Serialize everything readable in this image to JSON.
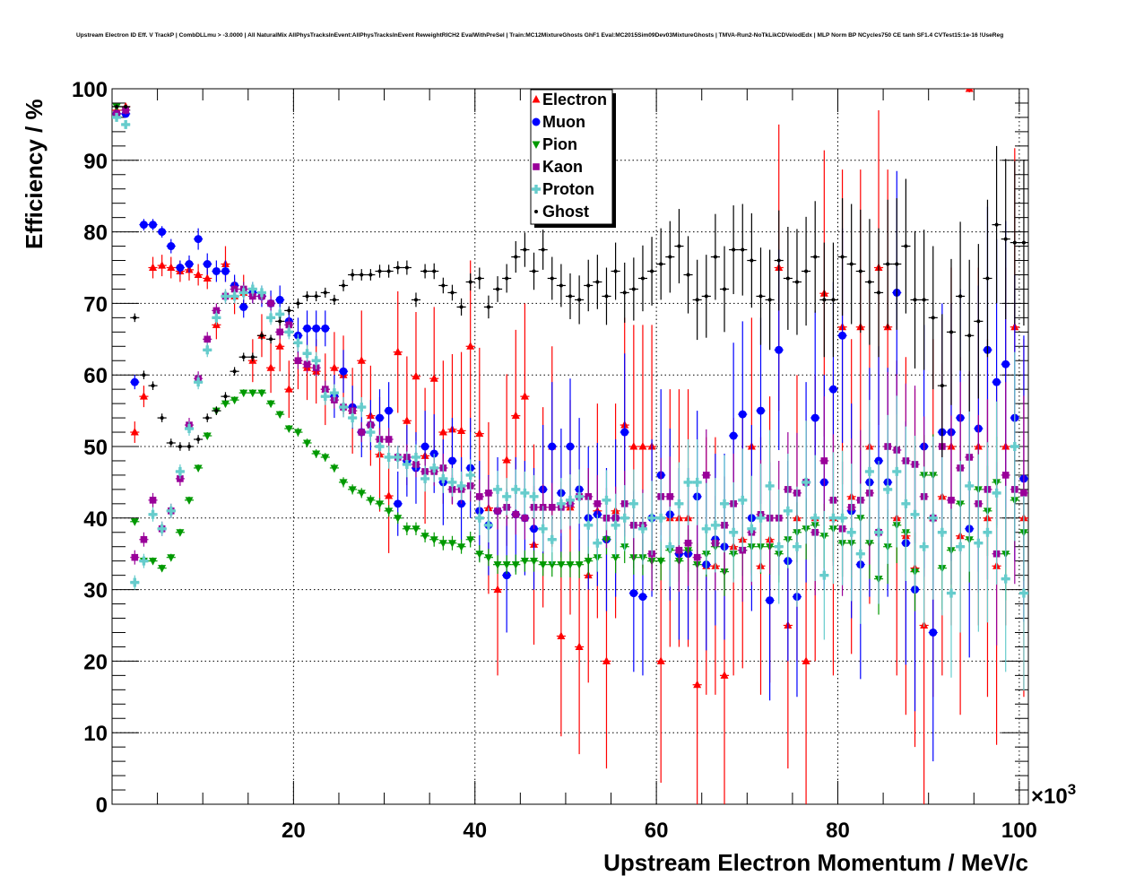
{
  "chart_data": {
    "type": "scatter",
    "title": "Upstream Electron ID Eff. V TrackP | CombDLLmu > -3.0000 | All NaturalMix AllPhysTracksInEvent:AllPhysTracksInEvent ReweightRICH2 EvalWithPreSel | Train:MC12MixtureGhosts GhF1 Eval:MC2015Sim09Dev03MixtureGhosts | TMVA-Run2-NoTkLikCDVelodEdx | MLP Norm BP NCycles750 CE tanh SF1.4 CVTest15:1e-16 !UseReg",
    "xlabel": "Upstream Electron Momentum / MeV/c",
    "ylabel": "Efficiency / %",
    "x_multiplier": "×10",
    "x_multiplier_exp": "3",
    "xlim": [
      0,
      101
    ],
    "ylim": [
      0,
      100
    ],
    "x_bin_start": 0.5,
    "x_bin_width": 1,
    "xticks": [
      "20",
      "40",
      "60",
      "80",
      "100"
    ],
    "yticks": [
      "0",
      "10",
      "20",
      "30",
      "40",
      "50",
      "60",
      "70",
      "80",
      "90",
      "100"
    ],
    "grid": true,
    "legend_position": "top-center",
    "series": [
      {
        "name": "Electron",
        "color": "#ff0000",
        "marker": "triangle-up",
        "values": [
          97,
          97.5,
          52,
          57,
          75,
          75.3,
          75,
          74.5,
          74.7,
          74,
          73.5,
          67,
          75.5,
          71,
          71.5,
          62,
          65.5,
          61,
          64,
          58,
          62,
          61,
          60.5,
          58,
          61,
          60,
          55,
          62,
          54.3,
          48.9,
          43.1,
          63.2,
          53.6,
          59.8,
          48.7,
          59.5,
          52,
          52.4,
          52.2,
          64,
          51.8,
          41.4,
          30,
          48.1,
          54.3,
          57,
          36.3,
          41.5,
          50,
          23.5,
          41.5,
          22,
          32,
          41,
          20,
          41,
          53,
          50,
          50,
          50,
          20,
          40,
          40,
          40,
          16.7,
          33.3,
          33.3,
          18,
          36,
          37,
          50,
          33.3,
          37,
          75,
          25,
          40,
          20,
          40,
          71.4,
          40,
          66.7,
          43,
          66.7,
          50,
          75,
          66.7,
          40,
          37.5,
          33,
          25,
          40,
          43,
          50,
          37.5,
          100,
          50,
          40,
          33.3,
          50,
          66.7,
          40
        ],
        "err": [
          0.5,
          0.5,
          1.5,
          1.5,
          1.5,
          1.5,
          1.5,
          1.5,
          1.5,
          1.5,
          1.5,
          2,
          2.5,
          2.5,
          2.5,
          3,
          3,
          3.5,
          3.5,
          4,
          4,
          4.5,
          4.5,
          5,
          5,
          5.5,
          6,
          7,
          7,
          8,
          8,
          8.5,
          9,
          9,
          9.5,
          10,
          10,
          10.5,
          11,
          12,
          12,
          12,
          12,
          12,
          12,
          13,
          14,
          14,
          14,
          14,
          15,
          15,
          15,
          15,
          15,
          15,
          15,
          17,
          17,
          17,
          17,
          18,
          18,
          18,
          18,
          18,
          18,
          18,
          18,
          18,
          18,
          18,
          20,
          20,
          20,
          20,
          20,
          20,
          20,
          22,
          22,
          22,
          22,
          22,
          22,
          22,
          22,
          25,
          25,
          25,
          25,
          25,
          25,
          25,
          0.5,
          25,
          25,
          25,
          25,
          25,
          25
        ]
      },
      {
        "name": "Muon",
        "color": "#0000ff",
        "marker": "circle",
        "values": [
          96.5,
          96.5,
          59,
          81,
          81,
          80,
          78,
          75,
          75.5,
          79,
          75.5,
          74.5,
          74.5,
          72.5,
          69.5,
          71.5,
          71,
          70,
          70.5,
          67.5,
          65.5,
          66.5,
          66.5,
          66.5,
          57,
          60.5,
          55.5,
          52,
          53,
          54,
          55,
          42,
          48,
          47,
          50,
          49,
          45,
          48,
          42,
          47,
          41,
          39,
          41,
          32,
          40.5,
          40,
          38.5,
          44,
          50,
          43.5,
          50,
          44,
          40,
          40.5,
          37,
          40,
          52,
          29.5,
          29,
          40,
          46,
          40.5,
          35,
          35,
          43,
          33.5,
          37,
          36,
          51.5,
          54.5,
          40,
          55,
          28.5,
          63.5,
          34,
          29,
          45,
          54,
          45,
          58,
          65.5,
          41,
          33.5,
          45,
          48,
          45,
          71.5,
          36.5,
          30,
          50,
          24,
          52,
          52,
          54,
          38.5,
          52.5,
          63.5,
          59,
          61.5,
          54,
          45.5
        ],
        "err": [
          0.3,
          0.5,
          1,
          0.8,
          0.8,
          0.8,
          1,
          1,
          1.2,
          1.5,
          1.5,
          1.5,
          1.5,
          1.5,
          1.5,
          1.5,
          1.5,
          1.8,
          2,
          2,
          2.5,
          2.5,
          2.5,
          2.5,
          3,
          3,
          3,
          3.5,
          3.5,
          4,
          4,
          4.5,
          5,
          5,
          5,
          5.5,
          6,
          6,
          6.5,
          7,
          7,
          7,
          7.5,
          8,
          8,
          8,
          8.5,
          9,
          9,
          9,
          9.5,
          10,
          10,
          10,
          10,
          11,
          11,
          11,
          11,
          11,
          12,
          12,
          12,
          12,
          12,
          12,
          12,
          13,
          13,
          13,
          13,
          13,
          14,
          14,
          14,
          14,
          14,
          15,
          15,
          15,
          15,
          15,
          16,
          16,
          16,
          16,
          17,
          17,
          17,
          17,
          18,
          18,
          18,
          18,
          18,
          20,
          20,
          20,
          20,
          20,
          20
        ]
      },
      {
        "name": "Pion",
        "color": "#009900",
        "marker": "triangle-down",
        "values": [
          97.5,
          97,
          39.5,
          34,
          34,
          33,
          34.5,
          38,
          42.5,
          47,
          51.5,
          55,
          56,
          56.5,
          57.5,
          57.5,
          57.5,
          56,
          54.5,
          52.5,
          52,
          50.5,
          49,
          48.5,
          47,
          45,
          44,
          43.5,
          42.5,
          42,
          41,
          40,
          38.5,
          38.5,
          37.5,
          37,
          36.5,
          36.5,
          36,
          37,
          35,
          34.5,
          33.5,
          33.5,
          33.5,
          34,
          34,
          33.5,
          33.5,
          33.5,
          33.5,
          33.5,
          34,
          34.5,
          37,
          34.5,
          36,
          34.5,
          34.5,
          34,
          34,
          35.5,
          34,
          35.5,
          33.5,
          35,
          36,
          32.5,
          35,
          35.5,
          36,
          36,
          36,
          35,
          37,
          38,
          38.5,
          39,
          37.5,
          38.5,
          36.5,
          36.5,
          40,
          36.5,
          31.5,
          36,
          39,
          38,
          32.5,
          46,
          46,
          33,
          35.5,
          42,
          37,
          44,
          41,
          45,
          35,
          42.5,
          38
        ],
        "err": [
          0.3,
          0.3,
          0.5,
          0.5,
          0.5,
          0.5,
          0.5,
          0.5,
          0.5,
          0.5,
          0.5,
          0.5,
          0.5,
          0.5,
          0.5,
          0.5,
          0.5,
          0.5,
          0.5,
          0.5,
          0.6,
          0.6,
          0.6,
          0.6,
          0.6,
          0.7,
          0.7,
          0.7,
          0.7,
          0.8,
          0.8,
          0.8,
          0.9,
          0.9,
          0.9,
          1,
          1,
          1,
          1,
          1.1,
          1.2,
          1.2,
          1.3,
          1.3,
          1.4,
          1.5,
          1.5,
          1.6,
          1.7,
          1.8,
          1.8,
          1.9,
          2,
          2,
          2.1,
          2.2,
          2.3,
          2.4,
          2.5,
          2.6,
          2.7,
          2.8,
          2.9,
          3,
          3,
          3.2,
          3.3,
          3.4,
          3.5,
          3.6,
          3.7,
          3.8,
          3.9,
          4,
          4,
          4.2,
          4.3,
          4.4,
          4.5,
          4.6,
          4.7,
          4.8,
          4.9,
          5,
          5,
          5.2,
          5.3,
          5.4,
          5.5,
          5.6,
          5.7,
          5.8,
          5.9,
          6,
          6,
          6.2,
          6.3,
          6.4,
          6.5,
          6.6,
          6.8
        ]
      },
      {
        "name": "Kaon",
        "color": "#990099",
        "marker": "square",
        "values": [
          96.5,
          97,
          34.5,
          37,
          42.5,
          38.5,
          41,
          45.5,
          53,
          59.5,
          65,
          69,
          71,
          72,
          72,
          71,
          71,
          70,
          66,
          67,
          62,
          61.5,
          61,
          58,
          56.5,
          55.5,
          55,
          52,
          53,
          51,
          51,
          48.5,
          48.5,
          47.5,
          46.5,
          46.5,
          47,
          44,
          44,
          44.5,
          43,
          43.5,
          41,
          41.5,
          40.5,
          40,
          41.5,
          41.5,
          41.5,
          41.5,
          42,
          43,
          43,
          42,
          40,
          40,
          42,
          39,
          39,
          35,
          43,
          43,
          35.5,
          36.5,
          34.5,
          46,
          36.5,
          39,
          42,
          35.5,
          38,
          40.5,
          40,
          40,
          44,
          43.5,
          45,
          38,
          48,
          42.5,
          38.5,
          41.5,
          42.5,
          43.5,
          38,
          50,
          49.5,
          48,
          47.5,
          43,
          40,
          50,
          42.5,
          47,
          48.5,
          42,
          44,
          35,
          46,
          44,
          43.5
        ],
        "err": [
          0.6,
          0.6,
          1,
          1,
          1,
          1,
          1,
          1,
          1,
          1,
          1,
          1,
          1,
          1,
          1,
          1,
          1,
          1,
          1,
          1,
          1.2,
          1.2,
          1.2,
          1.2,
          1.2,
          1.4,
          1.4,
          1.4,
          1.4,
          1.6,
          1.6,
          1.6,
          1.8,
          1.8,
          1.8,
          2,
          2,
          2,
          2,
          2.2,
          2.4,
          2.4,
          2.6,
          2.6,
          2.8,
          3,
          3,
          3.2,
          3.4,
          3.6,
          3.6,
          3.8,
          4,
          4,
          4.2,
          4.4,
          4.6,
          4.8,
          5,
          5.2,
          5.4,
          5.6,
          5.8,
          6,
          6,
          6.4,
          6.6,
          6.8,
          7,
          7.2,
          7.4,
          7.6,
          7.8,
          8,
          8,
          8.4,
          8.6,
          8.8,
          9,
          9.2,
          9.4,
          9.6,
          9.8,
          10,
          10,
          10.4,
          10.6,
          10.8,
          11,
          11.2,
          11.4,
          11.6,
          11.8,
          12,
          12,
          12.4,
          12.6,
          12.8,
          13,
          13.2,
          13.6
        ]
      },
      {
        "name": "Proton",
        "color": "#66cccc",
        "marker": "cross",
        "values": [
          96,
          95,
          31,
          34,
          40.5,
          38.5,
          41,
          46.5,
          52.5,
          59,
          63.5,
          68,
          71,
          71,
          71.5,
          72,
          71.5,
          68,
          68.5,
          66,
          64.5,
          63,
          62,
          57,
          57.5,
          55.5,
          54,
          55.5,
          52,
          50,
          48.5,
          48.5,
          47.5,
          48.5,
          45.5,
          47,
          45.5,
          45,
          44.5,
          46,
          40,
          39,
          44,
          43,
          44,
          43.5,
          43,
          38.5,
          37,
          42,
          42.5,
          43,
          39,
          36.5,
          42.5,
          39,
          40,
          42,
          38.5,
          40,
          40,
          36,
          42,
          45,
          45,
          38.5,
          39,
          42,
          38,
          42.5,
          38.5,
          40,
          44.5,
          36,
          41,
          36,
          45,
          40,
          32,
          40,
          40,
          38,
          35,
          46.5,
          38,
          44,
          46.5,
          42,
          40.5,
          36,
          40,
          38,
          29.5,
          36,
          44.5,
          36.5,
          38,
          43.5,
          31.5,
          50,
          29.5
        ],
        "err": [
          0.6,
          0.6,
          1,
          1,
          1,
          1,
          1,
          1,
          1,
          1,
          1,
          1,
          1,
          1,
          1,
          1,
          1,
          1,
          1,
          1,
          1.2,
          1.2,
          1.2,
          1.2,
          1.2,
          1.4,
          1.4,
          1.4,
          1.4,
          1.6,
          1.6,
          1.6,
          1.8,
          1.8,
          1.8,
          2,
          2,
          2,
          2,
          2.2,
          2.4,
          2.4,
          2.6,
          2.6,
          2.8,
          3,
          3,
          3.2,
          3.4,
          3.6,
          3.6,
          3.8,
          4,
          4,
          4.2,
          4.4,
          4.6,
          4.8,
          5,
          5.2,
          5.4,
          5.6,
          5.8,
          6,
          6,
          6.4,
          6.6,
          6.8,
          7,
          7.2,
          7.4,
          7.6,
          7.8,
          8,
          8,
          8.4,
          8.6,
          8.8,
          9,
          9.2,
          9.4,
          9.6,
          9.8,
          10,
          10,
          10.4,
          10.6,
          10.8,
          11,
          11.2,
          11.4,
          11.6,
          11.8,
          12,
          12,
          12.4,
          12.6,
          12.8,
          13,
          13.2,
          13.6
        ]
      },
      {
        "name": "Ghost",
        "color": "#000000",
        "marker": "dot",
        "values": [
          97.5,
          97.5,
          68,
          60,
          58.5,
          54,
          50.5,
          50,
          50,
          51,
          54,
          55,
          57,
          60.5,
          62.5,
          62.5,
          65.5,
          65,
          67.5,
          69,
          70,
          71,
          71,
          71.5,
          70.5,
          72.5,
          74,
          74,
          74,
          74.5,
          74.5,
          75,
          75,
          70.5,
          74.5,
          74.5,
          72.5,
          71.5,
          69.5,
          73,
          73.5,
          69.5,
          72,
          73.5,
          76.5,
          77.5,
          74.5,
          77.5,
          73.5,
          72.5,
          71,
          70.5,
          72.5,
          73,
          71,
          74.5,
          71.5,
          72,
          73.5,
          74.5,
          75.5,
          76.5,
          78,
          74,
          70.5,
          71,
          76.5,
          72,
          77.5,
          77.5,
          76,
          71,
          70.5,
          76,
          73.5,
          73,
          74.5,
          76.5,
          70.5,
          70.5,
          76.5,
          75.5,
          74.5,
          73,
          71.5,
          75.5,
          75.5,
          78,
          70.5,
          70.5,
          68,
          58.5,
          66,
          71,
          65.5,
          67.5,
          73.5,
          81,
          79,
          78.5,
          78.5
        ],
        "err": [
          0.3,
          0.3,
          0.6,
          0.6,
          0.6,
          0.6,
          0.6,
          0.6,
          0.6,
          0.6,
          0.6,
          0.6,
          0.6,
          0.6,
          0.6,
          0.6,
          0.6,
          0.6,
          0.6,
          0.6,
          0.7,
          0.7,
          0.7,
          0.7,
          0.7,
          0.8,
          0.8,
          0.8,
          0.8,
          0.9,
          0.9,
          0.9,
          1,
          1,
          1,
          1.1,
          1.1,
          1.1,
          1.2,
          1.2,
          1.5,
          1.6,
          1.8,
          2,
          2.2,
          2.4,
          2.6,
          2.8,
          3,
          3,
          3.2,
          3.4,
          3.6,
          3.8,
          4,
          4,
          4.2,
          4.4,
          4.6,
          4.8,
          5,
          5,
          5.2,
          5.4,
          5.6,
          5.8,
          6,
          6,
          6.2,
          6.4,
          6.6,
          6.8,
          7,
          7,
          7.2,
          7.4,
          7.6,
          7.8,
          8,
          8,
          8.2,
          8.4,
          8.6,
          8.8,
          9,
          9,
          9.2,
          9.4,
          9.6,
          9.8,
          10,
          10,
          10.2,
          10.4,
          10.6,
          10.8,
          11,
          11,
          11.2,
          11.4,
          11.6
        ]
      }
    ]
  }
}
